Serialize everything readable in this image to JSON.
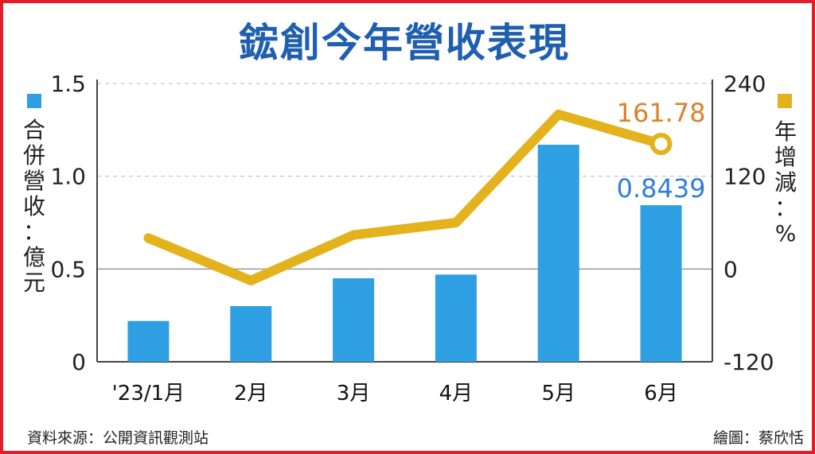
{
  "title": "鋐創今年營收表現",
  "legend": {
    "left_label_chars": [
      "合",
      "併",
      "營",
      "收",
      "：",
      "億",
      "元"
    ],
    "right_label_chars": [
      "年",
      "增",
      "減",
      "：",
      "%"
    ]
  },
  "source": "資料來源：公開資訊觀測站",
  "credit": "繪圖：蔡欣恬",
  "colors": {
    "bar": "#2f9fe3",
    "line": "#e3b21d",
    "title": "#1f5fae",
    "line_label": "#d9822b",
    "bar_label": "#2f7fd6",
    "border": "#e11d2a"
  },
  "chart_data": {
    "type": "bar",
    "categories": [
      "'23/1月",
      "2月",
      "3月",
      "4月",
      "5月",
      "6月"
    ],
    "series": [
      {
        "type": "bar",
        "axis": "left",
        "values": [
          0.22,
          0.3,
          0.45,
          0.47,
          1.17,
          0.8439
        ]
      },
      {
        "type": "line",
        "axis": "right",
        "values": [
          40,
          -15,
          44,
          60,
          200,
          161.78
        ]
      }
    ],
    "y_left": {
      "range": [
        0,
        1.5
      ],
      "ticks": [
        "0",
        "0.5",
        "1.0",
        "1.5"
      ],
      "tick_values": [
        0,
        0.5,
        1.0,
        1.5
      ]
    },
    "y_right": {
      "range": [
        -120,
        240
      ],
      "ticks": [
        "-120",
        "0",
        "120",
        "240"
      ],
      "tick_values": [
        -120,
        0,
        120,
        240
      ]
    },
    "data_labels": {
      "bar_last": "0.8439",
      "line_last": "161.78"
    },
    "grid": "horizontal dashed"
  }
}
